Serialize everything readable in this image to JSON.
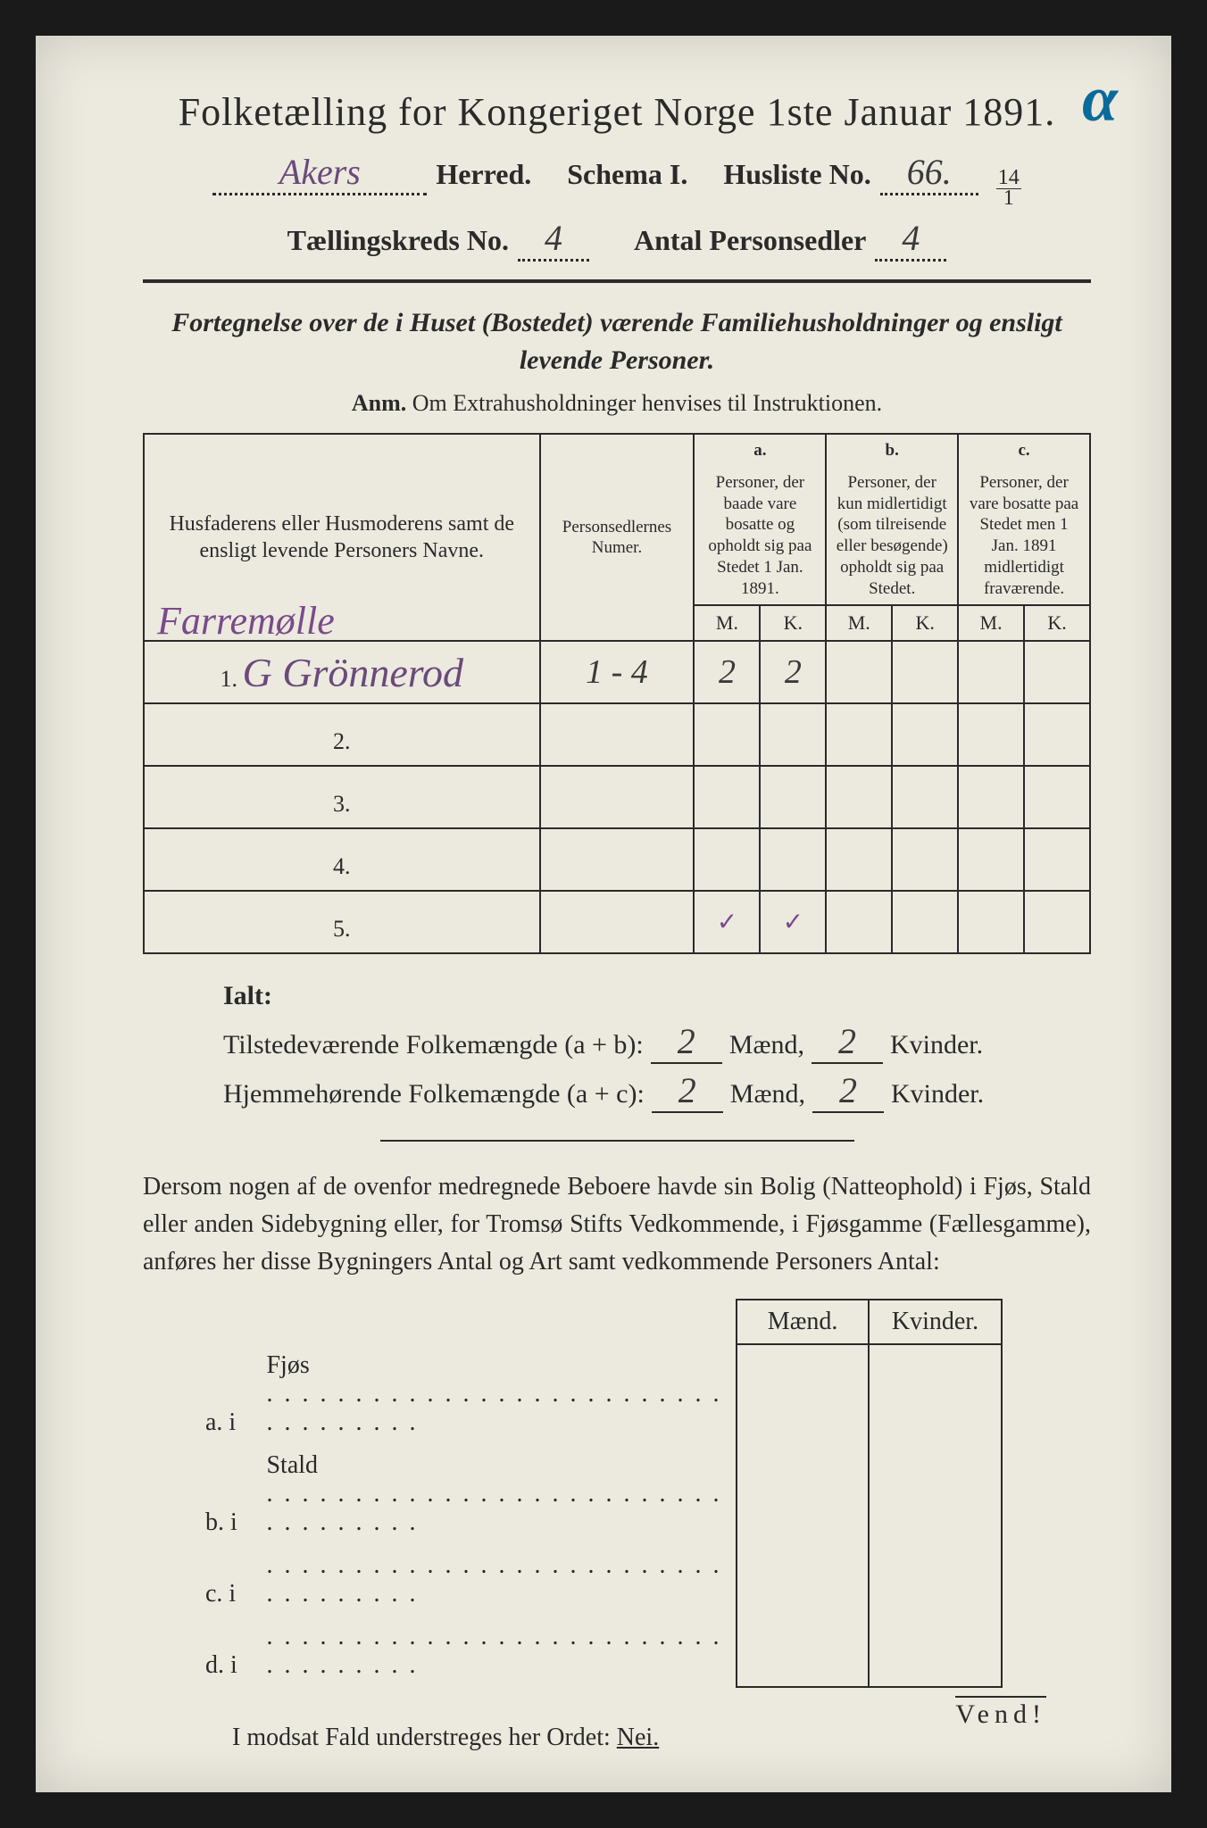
{
  "corner_annotation": "α",
  "title": "Folketælling for Kongeriget Norge 1ste Januar 1891.",
  "header": {
    "herred_value": "Akers",
    "herred_label": "Herred.",
    "schema_label": "Schema I.",
    "husliste_label": "Husliste No.",
    "husliste_value": "66.",
    "husliste_fraction_top": "14",
    "husliste_fraction_bot": "1",
    "kreds_label": "Tællingskreds No.",
    "kreds_value": "4",
    "antal_label": "Antal Personsedler",
    "antal_value": "4"
  },
  "intro": "Fortegnelse over de i Huset (Bostedet) værende Familiehusholdninger og ensligt levende Personer.",
  "anm_label": "Anm.",
  "anm_text": "Om Extrahusholdninger henvises til Instruktionen.",
  "table": {
    "col_name_header": "Husfaderens eller Husmoderens samt de ensligt levende Personers Navne.",
    "col_num_header": "Personsedlernes Numer.",
    "col_a_label": "a.",
    "col_a_header": "Personer, der baade vare bosatte og opholdt sig paa Stedet 1 Jan. 1891.",
    "col_b_label": "b.",
    "col_b_header": "Personer, der kun midlertidigt (som tilreisende eller besøgende) opholdt sig paa Stedet.",
    "col_c_label": "c.",
    "col_c_header": "Personer, der vare bosatte paa Stedet men 1 Jan. 1891 midlertidigt fraværende.",
    "m_label": "M.",
    "k_label": "K.",
    "place_name": "Farremølle",
    "rows": [
      {
        "n": "1.",
        "name": "G Grönnerod",
        "num": "1 - 4",
        "a_m": "2",
        "a_k": "2",
        "b_m": "",
        "b_k": "",
        "c_m": "",
        "c_k": ""
      },
      {
        "n": "2.",
        "name": "",
        "num": "",
        "a_m": "",
        "a_k": "",
        "b_m": "",
        "b_k": "",
        "c_m": "",
        "c_k": ""
      },
      {
        "n": "3.",
        "name": "",
        "num": "",
        "a_m": "",
        "a_k": "",
        "b_m": "",
        "b_k": "",
        "c_m": "",
        "c_k": ""
      },
      {
        "n": "4.",
        "name": "",
        "num": "",
        "a_m": "",
        "a_k": "",
        "b_m": "",
        "b_k": "",
        "c_m": "",
        "c_k": ""
      },
      {
        "n": "5.",
        "name": "",
        "num": "",
        "a_m": "✓",
        "a_k": "✓",
        "b_m": "",
        "b_k": "",
        "c_m": "",
        "c_k": ""
      }
    ]
  },
  "totals": {
    "ialt_label": "Ialt:",
    "line1_label": "Tilstedeværende Folkemængde (a + b):",
    "line2_label": "Hjemmehørende Folkemængde (a + c):",
    "maend_label": "Mænd,",
    "kvinder_label": "Kvinder.",
    "l1_m": "2",
    "l1_k": "2",
    "l2_m": "2",
    "l2_k": "2"
  },
  "paragraph": "Dersom nogen af de ovenfor medregnede Beboere havde sin Bolig (Natteophold) i Fjøs, Stald eller anden Sidebygning eller, for Tromsø Stifts Vedkommende, i Fjøsgamme (Fællesgamme), anføres her disse Bygningers Antal og Art samt vedkommende Personers Antal:",
  "bldg_table": {
    "maend": "Mænd.",
    "kvinder": "Kvinder.",
    "rows": [
      {
        "lbl": "a.  i",
        "nm": "Fjøs"
      },
      {
        "lbl": "b.  i",
        "nm": "Stald"
      },
      {
        "lbl": "c.  i",
        "nm": ""
      },
      {
        "lbl": "d.  i",
        "nm": ""
      }
    ]
  },
  "nei_line_pre": "I modsat Fald understreges her Ordet: ",
  "nei_word": "Nei.",
  "vend": "Vend!",
  "colors": {
    "page_bg": "#eceadf",
    "ink": "#2a2a2a",
    "handwriting_purple": "#6a4a7a",
    "corner_blue": "#0a6b9a"
  }
}
